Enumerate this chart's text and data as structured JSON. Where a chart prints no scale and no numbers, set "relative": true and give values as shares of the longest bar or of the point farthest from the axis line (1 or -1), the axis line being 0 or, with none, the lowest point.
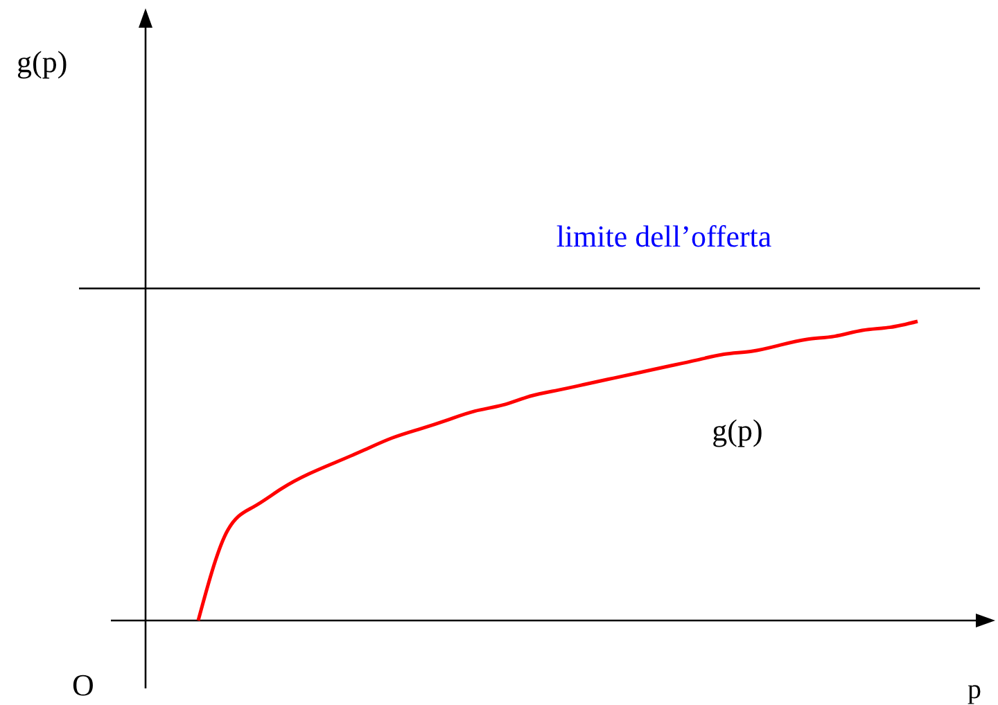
{
  "chart_data": {
    "type": "line",
    "relative": true,
    "xlabel": "p",
    "annotations": [
      "g(p)",
      "O",
      "g(p)"
    ],
    "categories": [
      null,
      null,
      null,
      null,
      null,
      null,
      null,
      null,
      null,
      null,
      null,
      null,
      null,
      null,
      null,
      null,
      null,
      null,
      null,
      null,
      null,
      null,
      null,
      null,
      null,
      null,
      null
    ],
    "series": [
      {
        "color": "#ff0000",
        "values": [
          0,
          0.29,
          0.38,
          0.44,
          0.49,
          0.53,
          0.57,
          0.61,
          0.64,
          0.67,
          0.7,
          0.72,
          0.75,
          0.77,
          0.79,
          0.81,
          0.83,
          0.85,
          0.87,
          0.89,
          0.9,
          0.92,
          0.94,
          0.95,
          0.97,
          0.98,
          1
        ]
      }
    ],
    "ref_lines": [
      {
        "axis": "y",
        "value": 1.11,
        "label": "limite dell’offerta",
        "color": "#000000"
      }
    ],
    "marker": "none",
    "line_style": "solid"
  }
}
